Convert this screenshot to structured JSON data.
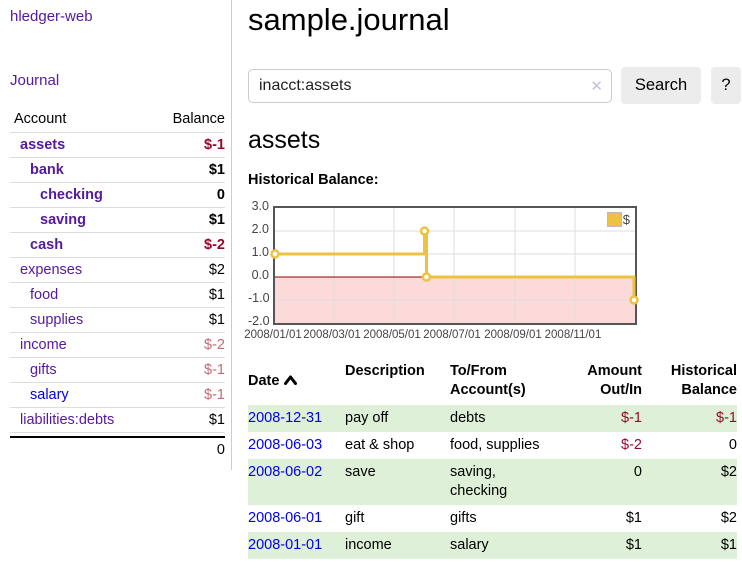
{
  "app": {
    "brand": "hledger-web",
    "nav": {
      "journal": "Journal"
    }
  },
  "sidebar": {
    "header": {
      "account": "Account",
      "balance": "Balance"
    },
    "accounts": [
      {
        "name": "assets",
        "level": 0,
        "bold": true,
        "blue": false,
        "balance": "$-1",
        "balance_class": "neg-strong"
      },
      {
        "name": "bank",
        "level": 1,
        "bold": true,
        "blue": false,
        "balance": "$1",
        "balance_class": ""
      },
      {
        "name": "checking",
        "level": 2,
        "bold": true,
        "blue": false,
        "balance": "0",
        "balance_class": ""
      },
      {
        "name": "saving",
        "level": 2,
        "bold": true,
        "blue": false,
        "balance": "$1",
        "balance_class": ""
      },
      {
        "name": "cash",
        "level": 1,
        "bold": true,
        "blue": false,
        "balance": "$-2",
        "balance_class": "neg-strong"
      },
      {
        "name": "expenses",
        "level": 0,
        "bold": false,
        "blue": false,
        "balance": "$2",
        "balance_class": ""
      },
      {
        "name": "food",
        "level": 1,
        "bold": false,
        "blue": false,
        "balance": "$1",
        "balance_class": ""
      },
      {
        "name": "supplies",
        "level": 1,
        "bold": false,
        "blue": false,
        "balance": "$1",
        "balance_class": ""
      },
      {
        "name": "income",
        "level": 0,
        "bold": false,
        "blue": false,
        "balance": "$-2",
        "balance_class": "neg-soft"
      },
      {
        "name": "gifts",
        "level": 1,
        "bold": false,
        "blue": false,
        "balance": "$-1",
        "balance_class": "neg-soft"
      },
      {
        "name": "salary",
        "level": 1,
        "bold": false,
        "blue": true,
        "balance": "$-1",
        "balance_class": "neg-soft"
      },
      {
        "name": "liabilities:debts",
        "level": 0,
        "bold": false,
        "blue": false,
        "balance": "$1",
        "balance_class": ""
      }
    ],
    "total": "0"
  },
  "header": {
    "title": "sample.journal"
  },
  "search": {
    "value": "inacct:assets",
    "clear_icon": "✕",
    "button": "Search",
    "help": "?"
  },
  "account_page": {
    "title": "assets",
    "chart_label": "Historical Balance:"
  },
  "chart_data": {
    "type": "line",
    "style": "step",
    "title": "Historical Balance",
    "legend_position": "top-right",
    "series": [
      {
        "name": "$",
        "color": "#edc240",
        "points": [
          {
            "date": "2008-01-01",
            "value": 1
          },
          {
            "date": "2008-06-01",
            "value": 2
          },
          {
            "date": "2008-06-03",
            "value": 0
          },
          {
            "date": "2008-12-31",
            "value": -1
          }
        ]
      }
    ],
    "x_range": [
      "2008-01-01",
      "2009-01-01"
    ],
    "ylim": [
      -2,
      3
    ],
    "yticks": [
      "3.0",
      "2.0",
      "1.0",
      "0.0",
      "-1.0",
      "-2.0"
    ],
    "xticks": [
      "2008/01/01",
      "2008/03/01",
      "2008/05/01",
      "2008/07/01",
      "2008/09/01",
      "2008/11/01"
    ],
    "grid": true,
    "grid_color": "#dddddd",
    "zero_line_color": "#8b0000",
    "negative_fill_color": "#fcdada",
    "border_color": "#555555"
  },
  "register": {
    "headers": {
      "date": "Date",
      "description": "Description",
      "account": "To/From Account(s)",
      "amount": "Amount Out/In",
      "balance": "Historical Balance"
    },
    "rows": [
      {
        "date": "2008-12-31",
        "description": "pay off",
        "account": "debts",
        "amount": "$-1",
        "amount_neg": true,
        "balance": "$-1",
        "balance_neg": true
      },
      {
        "date": "2008-06-03",
        "description": "eat & shop",
        "account": "food, supplies",
        "amount": "$-2",
        "amount_neg": true,
        "balance": "0",
        "balance_neg": false
      },
      {
        "date": "2008-06-02",
        "description": "save",
        "account": "saving, checking",
        "amount": "0",
        "amount_neg": false,
        "balance": "$2",
        "balance_neg": false
      },
      {
        "date": "2008-06-01",
        "description": "gift",
        "account": "gifts",
        "amount": "$1",
        "amount_neg": false,
        "balance": "$2",
        "balance_neg": false
      },
      {
        "date": "2008-01-01",
        "description": "income",
        "account": "salary",
        "amount": "$1",
        "amount_neg": false,
        "balance": "$1",
        "balance_neg": false
      }
    ]
  }
}
